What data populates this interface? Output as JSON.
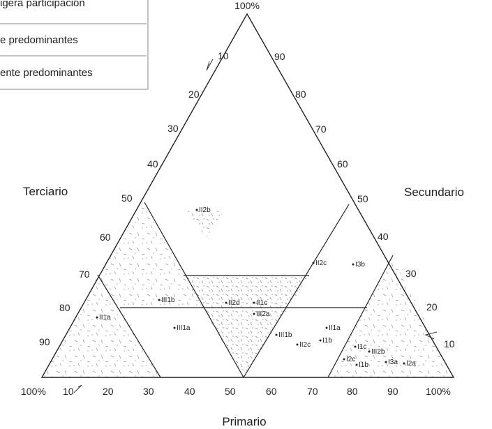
{
  "legend": {
    "items": [
      "igera participación",
      "e predominantes",
      "ente predominantes"
    ]
  },
  "axes": {
    "top_label": "100%",
    "bottom_title": "Primario",
    "left_title": "Terciario",
    "right_title": "Secundario",
    "bottom_ticks": [
      "100%",
      "10",
      "20",
      "30",
      "40",
      "50",
      "60",
      "70",
      "80",
      "90",
      "100%"
    ],
    "left_ticks": [
      "10",
      "20",
      "30",
      "40",
      "50",
      "60",
      "70",
      "80",
      "90"
    ],
    "right_ticks": [
      "90",
      "80",
      "70",
      "60",
      "50",
      "40",
      "30",
      "20",
      "10"
    ]
  },
  "points": [
    {
      "label": "II2b"
    },
    {
      "label": "II2c"
    },
    {
      "label": "I3b"
    },
    {
      "label": "III1b"
    },
    {
      "label": "II2d"
    },
    {
      "label": "II1c"
    },
    {
      "label": "III2a"
    },
    {
      "label": "II1a"
    },
    {
      "label": "III1a"
    },
    {
      "label": "III1b"
    },
    {
      "label": "II1a"
    },
    {
      "label": "II2c"
    },
    {
      "label": "I1b"
    },
    {
      "label": "I1c"
    },
    {
      "label": "III2b"
    },
    {
      "label": "I2c"
    },
    {
      "label": "I1b"
    },
    {
      "label": "I3a"
    },
    {
      "label": "I2a"
    }
  ]
}
